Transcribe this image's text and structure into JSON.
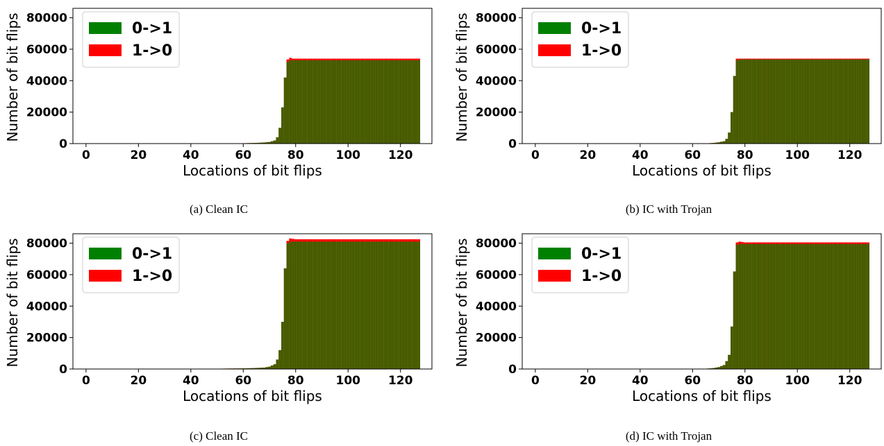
{
  "figure": {
    "panels": [
      {
        "id": "a",
        "caption": "(a) Clean IC"
      },
      {
        "id": "b",
        "caption": "(b) IC with Trojan"
      },
      {
        "id": "c",
        "caption": "(c) Clean IC"
      },
      {
        "id": "d",
        "caption": "(d) IC with Trojan"
      }
    ]
  },
  "chart_data": [
    {
      "type": "bar",
      "xlabel": "Locations of bit flips",
      "ylabel": "Number of bit flips",
      "xticks": [
        0,
        20,
        40,
        60,
        80,
        100,
        120
      ],
      "yticks": [
        0,
        20000,
        40000,
        60000,
        80000
      ],
      "xlim": [
        -5,
        132
      ],
      "ylim": [
        0,
        86000
      ],
      "legend_position": "upper-left",
      "series": [
        {
          "name": "0->1",
          "color": "#008000",
          "x": [
            60,
            62,
            64,
            66,
            68,
            70,
            72,
            73,
            74,
            75,
            76,
            77,
            78,
            79,
            80,
            90,
            100,
            110,
            120,
            127
          ],
          "values": [
            200,
            300,
            400,
            500,
            700,
            1000,
            2000,
            4000,
            10000,
            23000,
            42000,
            52000,
            53000,
            53000,
            53000,
            53000,
            53000,
            53000,
            53000,
            53000
          ]
        },
        {
          "name": "1->0",
          "color": "#ff0000",
          "x": [
            60,
            62,
            64,
            66,
            68,
            70,
            72,
            73,
            74,
            75,
            76,
            77,
            78,
            79,
            80,
            90,
            100,
            110,
            120,
            127
          ],
          "values": [
            200,
            300,
            400,
            500,
            700,
            1000,
            2000,
            4000,
            10000,
            23000,
            42000,
            53500,
            54500,
            54000,
            54000,
            54000,
            54000,
            54000,
            54000,
            54000
          ]
        }
      ]
    },
    {
      "type": "bar",
      "xlabel": "Locations of bit flips",
      "ylabel": "Number of bit flips",
      "xticks": [
        0,
        20,
        40,
        60,
        80,
        100,
        120
      ],
      "yticks": [
        0,
        20000,
        40000,
        60000,
        80000
      ],
      "xlim": [
        -5,
        132
      ],
      "ylim": [
        0,
        86000
      ],
      "legend_position": "upper-left",
      "series": [
        {
          "name": "0->1",
          "color": "#008000",
          "x": [
            66,
            68,
            70,
            72,
            73,
            74,
            75,
            76,
            77,
            78,
            80,
            90,
            100,
            110,
            120,
            127
          ],
          "values": [
            200,
            400,
            800,
            1500,
            3000,
            7000,
            20000,
            43000,
            53000,
            53500,
            53500,
            53500,
            53500,
            53500,
            53500,
            53500
          ]
        },
        {
          "name": "1->0",
          "color": "#ff0000",
          "x": [
            66,
            68,
            70,
            72,
            73,
            74,
            75,
            76,
            77,
            78,
            80,
            90,
            100,
            110,
            120,
            127
          ],
          "values": [
            200,
            400,
            800,
            1500,
            3000,
            7000,
            20000,
            43000,
            54000,
            54000,
            54000,
            54000,
            54000,
            54000,
            54000,
            54000
          ]
        }
      ]
    },
    {
      "type": "bar",
      "xlabel": "Locations of bit flips",
      "ylabel": "Number of bit flips",
      "xticks": [
        0,
        20,
        40,
        60,
        80,
        100,
        120
      ],
      "yticks": [
        0,
        20000,
        40000,
        60000,
        80000
      ],
      "xlim": [
        -5,
        132
      ],
      "ylim": [
        0,
        86000
      ],
      "legend_position": "upper-left",
      "series": [
        {
          "name": "0->1",
          "color": "#008000",
          "x": [
            50,
            55,
            60,
            64,
            68,
            70,
            72,
            73,
            74,
            75,
            76,
            77,
            78,
            80,
            90,
            100,
            110,
            120,
            127
          ],
          "values": [
            200,
            300,
            400,
            600,
            900,
            1500,
            3000,
            6000,
            12000,
            30000,
            64000,
            80000,
            81000,
            81000,
            81000,
            81000,
            81000,
            81000,
            81000
          ]
        },
        {
          "name": "1->0",
          "color": "#ff0000",
          "x": [
            50,
            55,
            60,
            64,
            68,
            70,
            72,
            73,
            74,
            75,
            76,
            77,
            78,
            80,
            90,
            100,
            110,
            120,
            127
          ],
          "values": [
            200,
            300,
            400,
            600,
            900,
            1500,
            3000,
            6000,
            12000,
            30000,
            64000,
            81500,
            83000,
            82500,
            82500,
            82500,
            82500,
            82500,
            82500
          ]
        }
      ]
    },
    {
      "type": "bar",
      "xlabel": "Locations of bit flips",
      "ylabel": "Number of bit flips",
      "xticks": [
        0,
        20,
        40,
        60,
        80,
        100,
        120
      ],
      "yticks": [
        0,
        20000,
        40000,
        60000,
        80000
      ],
      "xlim": [
        -5,
        132
      ],
      "ylim": [
        0,
        86000
      ],
      "legend_position": "upper-left",
      "series": [
        {
          "name": "0->1",
          "color": "#008000",
          "x": [
            66,
            68,
            70,
            72,
            73,
            74,
            75,
            76,
            77,
            78,
            80,
            90,
            100,
            110,
            120,
            127
          ],
          "values": [
            300,
            600,
            1200,
            2500,
            5000,
            9000,
            27000,
            62000,
            79000,
            79500,
            79500,
            79500,
            79500,
            79500,
            79500,
            79500
          ]
        },
        {
          "name": "1->0",
          "color": "#ff0000",
          "x": [
            66,
            68,
            70,
            72,
            73,
            74,
            75,
            76,
            77,
            78,
            80,
            90,
            100,
            110,
            120,
            127
          ],
          "values": [
            300,
            600,
            1200,
            2500,
            5000,
            9000,
            27000,
            62000,
            80500,
            81000,
            80500,
            80500,
            80500,
            80500,
            80500,
            80500
          ]
        }
      ]
    }
  ]
}
